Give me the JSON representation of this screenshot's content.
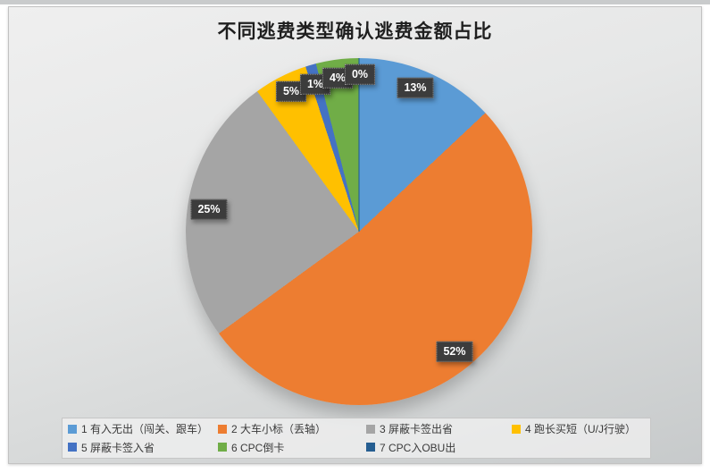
{
  "chart_data": {
    "type": "pie",
    "title": "不同逃费类型确认逃费金额占比",
    "start_angle_deg": 0,
    "direction": "clockwise",
    "legend_position": "bottom",
    "slices": [
      {
        "name": "1 有入无出（闯关、跟车）",
        "value": 13,
        "pct_label": "13%",
        "color": "#5B9BD5"
      },
      {
        "name": "2 大车小标（丢轴）",
        "value": 52,
        "pct_label": "52%",
        "color": "#ED7D31"
      },
      {
        "name": "3 屏蔽卡签出省",
        "value": 25,
        "pct_label": "25%",
        "color": "#A5A5A5"
      },
      {
        "name": "4 跑长买短（U/J行驶）",
        "value": 5,
        "pct_label": "5%",
        "color": "#FFC000"
      },
      {
        "name": "5 屏蔽卡签入省",
        "value": 1,
        "pct_label": "1%",
        "color": "#4472C4"
      },
      {
        "name": "6 CPC倒卡",
        "value": 4,
        "pct_label": "4%",
        "color": "#70AD47"
      },
      {
        "name": "7 CPC入OBU出",
        "value": 0,
        "pct_label": "0%",
        "color": "#255E91"
      }
    ]
  }
}
